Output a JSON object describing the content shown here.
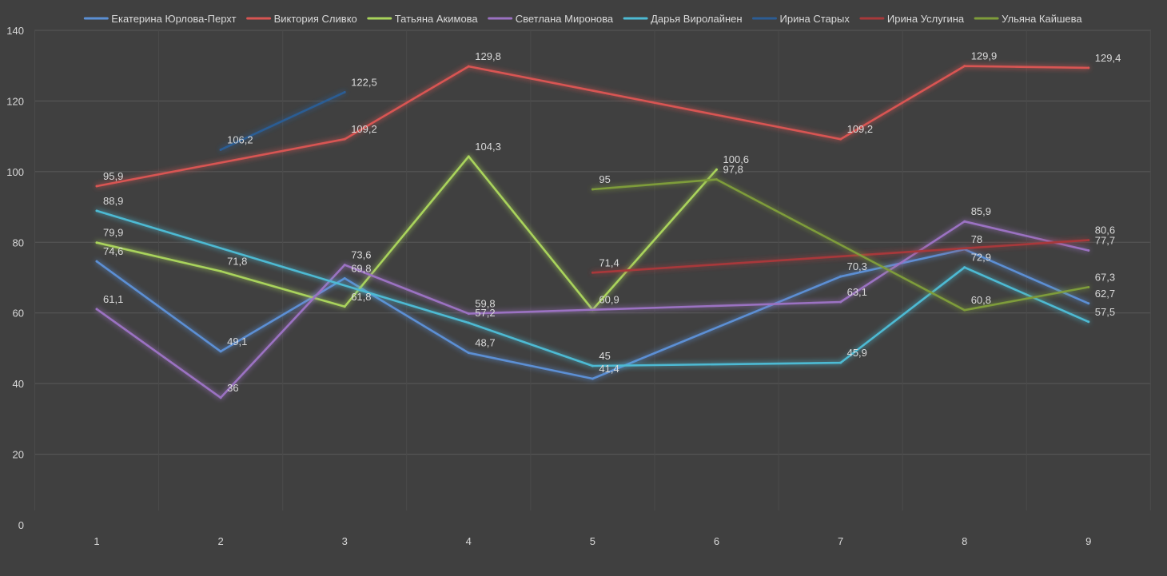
{
  "chart_data": {
    "type": "line",
    "title": "",
    "xlabel": "",
    "ylabel": "",
    "x": [
      1,
      2,
      3,
      4,
      5,
      6,
      7,
      8,
      9
    ],
    "ylim": [
      0,
      140
    ],
    "yticks": [
      0,
      20,
      40,
      60,
      80,
      100,
      120,
      140
    ],
    "grid": true,
    "legend_position": "top",
    "background": "#404040",
    "series": [
      {
        "name": "Екатерина Юрлова-Перхт",
        "color": "#5b8fd4",
        "values": [
          74.6,
          49.1,
          69.8,
          48.7,
          41.4,
          null,
          70.3,
          78,
          62.7
        ],
        "labels": [
          "74,6",
          "49,1",
          "69,8",
          "48,7",
          "41,4",
          null,
          "70,3",
          "78",
          "62,7"
        ]
      },
      {
        "name": "Виктория Сливко",
        "color": "#d85552",
        "values": [
          95.9,
          null,
          109.2,
          129.8,
          null,
          null,
          109.2,
          129.9,
          129.4
        ],
        "labels": [
          "95,9",
          null,
          "109,2",
          "129,8",
          null,
          null,
          "109,2",
          "129,9",
          "129,4"
        ]
      },
      {
        "name": "Татьяна Акимова",
        "color": "#a9d35b",
        "values": [
          79.9,
          71.8,
          61.8,
          104.3,
          60.9,
          100.6,
          null,
          null,
          null
        ],
        "labels": [
          "79,9",
          "71,8",
          "61,8",
          "104,3",
          "60,9",
          "100,6",
          null,
          null,
          null
        ]
      },
      {
        "name": "Светлана Миронова",
        "color": "#9b72c2",
        "values": [
          61.1,
          36,
          73.6,
          59.8,
          null,
          null,
          63.1,
          85.9,
          77.7
        ],
        "labels": [
          "61,1",
          "36",
          "73,6",
          "59,8",
          null,
          null,
          "63,1",
          "85,9",
          "77,7"
        ]
      },
      {
        "name": "Дарья Виролайнен",
        "color": "#4dbad3",
        "values": [
          88.9,
          null,
          null,
          57.2,
          45,
          null,
          45.9,
          72.9,
          57.5
        ],
        "labels": [
          "88,9",
          null,
          null,
          "57,2",
          "45",
          null,
          "45,9",
          "72,9",
          "57,5"
        ]
      },
      {
        "name": "Ирина Старых",
        "color": "#2c5d94",
        "values": [
          null,
          106.2,
          122.5,
          null,
          null,
          null,
          null,
          null,
          null
        ],
        "labels": [
          null,
          "106,2",
          "122,5",
          null,
          null,
          null,
          null,
          null,
          null
        ]
      },
      {
        "name": "Ирина Услугина",
        "color": "#a8393a",
        "values": [
          null,
          null,
          null,
          null,
          71.4,
          null,
          null,
          null,
          80.6
        ],
        "labels": [
          null,
          null,
          null,
          null,
          "71,4",
          null,
          null,
          null,
          "80,6"
        ]
      },
      {
        "name": "Ульяна Кайшева",
        "color": "#7e9c3a",
        "values": [
          null,
          null,
          null,
          null,
          95,
          97.8,
          null,
          60.8,
          67.3
        ],
        "labels": [
          null,
          null,
          null,
          null,
          "95",
          "97,8",
          null,
          "60,8",
          "67,3"
        ]
      }
    ]
  }
}
